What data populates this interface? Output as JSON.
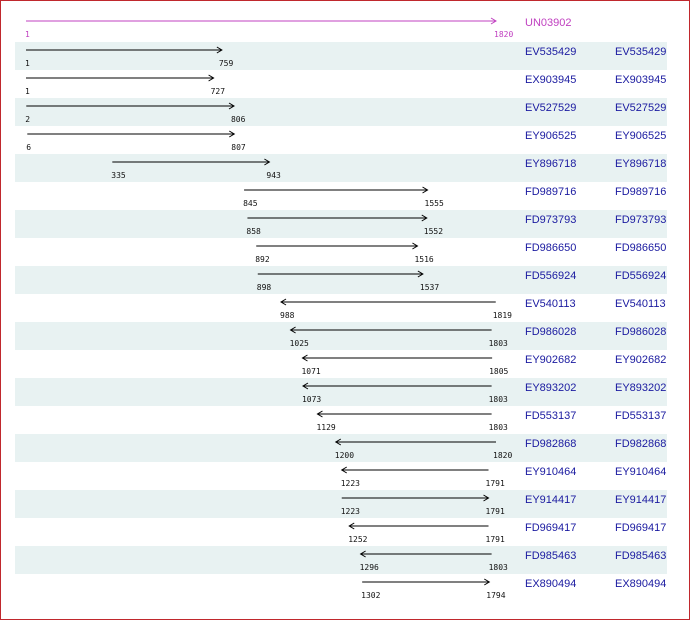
{
  "colors": {
    "border": "#c0282d",
    "row_alt": "#e8f2f2",
    "reference": "#c040c0",
    "link": "#1a1aa0",
    "arrow": "#000000"
  },
  "reference": {
    "name": "UN03902",
    "start": 1,
    "end": 1820
  },
  "alignments": [
    {
      "id": "EV535429",
      "link": "EV535429",
      "start": 1,
      "end": 759,
      "strand": "+"
    },
    {
      "id": "EX903945",
      "link": "EX903945",
      "start": 1,
      "end": 727,
      "strand": "+"
    },
    {
      "id": "EV527529",
      "link": "EV527529",
      "start": 2,
      "end": 806,
      "strand": "+"
    },
    {
      "id": "EY906525",
      "link": "EY906525",
      "start": 6,
      "end": 807,
      "strand": "+"
    },
    {
      "id": "EY896718",
      "link": "EY896718",
      "start": 335,
      "end": 943,
      "strand": "+"
    },
    {
      "id": "FD989716",
      "link": "FD989716",
      "start": 845,
      "end": 1555,
      "strand": "+"
    },
    {
      "id": "FD973793",
      "link": "FD973793",
      "start": 858,
      "end": 1552,
      "strand": "+"
    },
    {
      "id": "FD986650",
      "link": "FD986650",
      "start": 892,
      "end": 1516,
      "strand": "+"
    },
    {
      "id": "FD556924",
      "link": "FD556924",
      "start": 898,
      "end": 1537,
      "strand": "+"
    },
    {
      "id": "EV540113",
      "link": "EV540113",
      "start": 988,
      "end": 1819,
      "strand": "-"
    },
    {
      "id": "FD986028",
      "link": "FD986028",
      "start": 1025,
      "end": 1803,
      "strand": "-"
    },
    {
      "id": "EY902682",
      "link": "EY902682",
      "start": 1071,
      "end": 1805,
      "strand": "-"
    },
    {
      "id": "EY893202",
      "link": "EY893202",
      "start": 1073,
      "end": 1803,
      "strand": "-"
    },
    {
      "id": "FD553137",
      "link": "FD553137",
      "start": 1129,
      "end": 1803,
      "strand": "-"
    },
    {
      "id": "FD982868",
      "link": "FD982868",
      "start": 1200,
      "end": 1820,
      "strand": "-"
    },
    {
      "id": "EY910464",
      "link": "EY910464",
      "start": 1223,
      "end": 1791,
      "strand": "-"
    },
    {
      "id": "EY914417",
      "link": "EY914417",
      "start": 1223,
      "end": 1791,
      "strand": "+"
    },
    {
      "id": "FD969417",
      "link": "FD969417",
      "start": 1252,
      "end": 1791,
      "strand": "-"
    },
    {
      "id": "FD985463",
      "link": "FD985463",
      "start": 1296,
      "end": 1803,
      "strand": "-"
    },
    {
      "id": "EX890494",
      "link": "EX890494",
      "start": 1302,
      "end": 1794,
      "strand": "+"
    }
  ]
}
